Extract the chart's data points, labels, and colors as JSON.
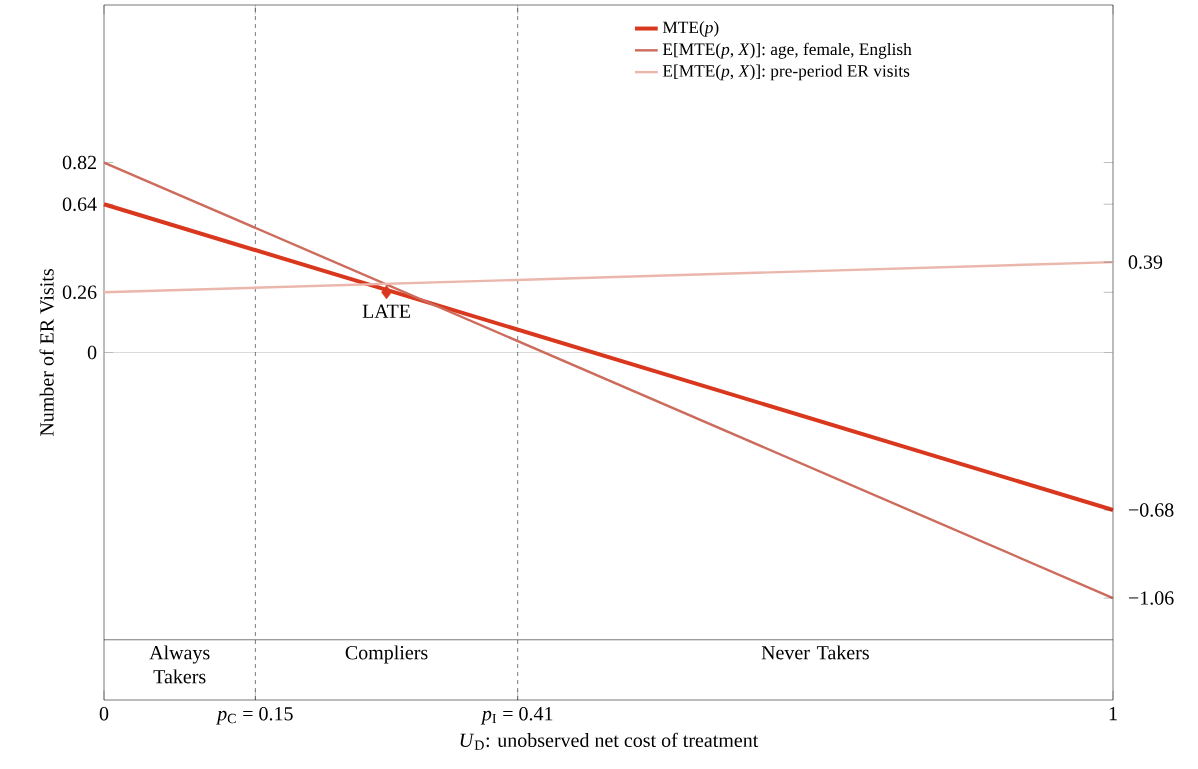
{
  "chart_data": {
    "type": "line",
    "x": [
      0,
      1
    ],
    "xlabel": "*U*$_{D}$: unobserved net cost of treatment",
    "ylabel": "Number of ER Visits",
    "xlim": [
      0,
      1
    ],
    "xticks": [
      0,
      {
        "value": 0.15,
        "label": "*p*$_{C}$ = 0.15"
      },
      {
        "value": 0.41,
        "label": "*p*$_{I}$ = 0.41"
      },
      1
    ],
    "ylim": [
      -1.5,
      1.5
    ],
    "yticks": [
      0,
      0.26,
      0.64,
      0.82
    ],
    "y2lim": [
      -1.5,
      1.5
    ],
    "y2ticks": [
      {
        "value": -1.06,
        "label": "−1.06"
      },
      {
        "value": -0.68,
        "label": "−0.68"
      },
      0.39
    ],
    "legend": "top right",
    "series": [
      {
        "name": "MTE(*p*)",
        "color": "#d9381e",
        "values": [
          0.64,
          -0.68
        ]
      },
      {
        "name": "E[MTE(*p*, *X*)]: age, female, English",
        "color": "#cd6c5c",
        "values": [
          0.82,
          -1.06
        ]
      },
      {
        "name": "E[MTE(*p*, *X*)]: pre-period ER visits",
        "color": "#ebb6ac",
        "values": [
          0.26,
          0.39
        ]
      },
      {
        "type": "scatter",
        "marker": "diamond",
        "color": "#d9381e",
        "x": [
          0.28
        ],
        "values": [
          0.26
        ]
      }
    ],
    "ref_lines": [
      {
        "axis": "y",
        "value": 0,
        "color": "#bbbbbb"
      },
      {
        "axis": "y",
        "value": -1.24,
        "color": "#000000"
      },
      {
        "axis": "x",
        "value": 0.15,
        "line_style": "dashed",
        "color": "#000000"
      },
      {
        "axis": "x",
        "value": 0.41,
        "line_style": "dashed",
        "color": "#000000"
      }
    ],
    "annotations": [
      {
        "text": "LATE",
        "x": 0.28,
        "y": 0.26
      },
      "Always Takers",
      "Compliers",
      "Never Takers"
    ]
  }
}
